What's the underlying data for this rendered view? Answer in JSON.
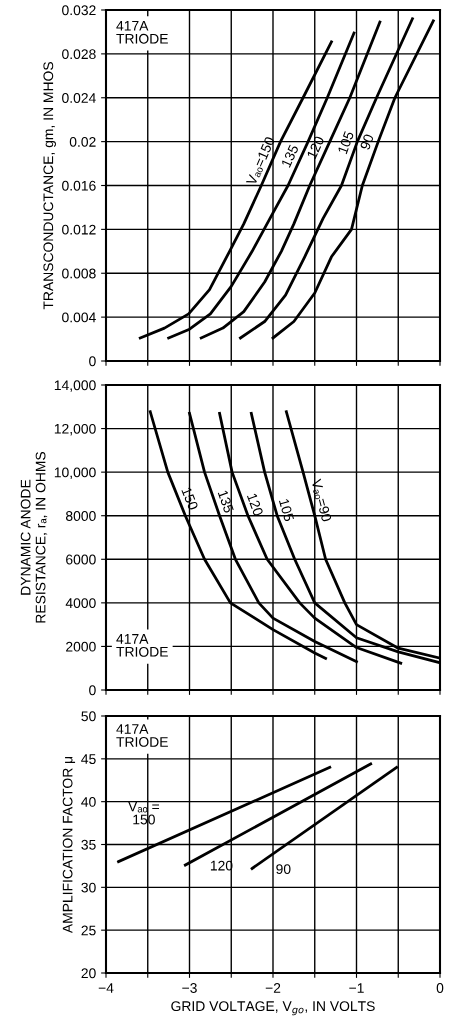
{
  "chart_data": [
    {
      "type": "line",
      "ylabel": "TRANSCONDUCTANCE, gm, IN MHOS",
      "annotations": [
        "417A\nTRIODE"
      ],
      "xlim": [
        -4,
        0
      ],
      "ylim": [
        0,
        0.032
      ],
      "xticks": [
        {
          "value": -4,
          "label": null
        },
        {
          "value": -3.5,
          "label": null
        },
        {
          "value": -3,
          "label": null
        },
        {
          "value": -2.5,
          "label": null
        },
        {
          "value": -2,
          "label": null
        },
        {
          "value": -1.5,
          "label": null
        },
        {
          "value": -1,
          "label": null
        },
        {
          "value": -0.5,
          "label": null
        },
        {
          "value": 0,
          "label": null
        }
      ],
      "yticks": [
        0,
        0.004,
        0.008,
        0.012,
        0.016,
        0.02,
        0.024,
        0.028,
        0.032
      ],
      "tick_labels": "y",
      "grid": true,
      "legend": false,
      "marker": "none",
      "line_style": "solid",
      "series": [
        {
          "name": "Vₐₒ=150",
          "color": "#000000",
          "x": [
            -3.59,
            -3.3,
            -3.01,
            -2.76,
            -2.52,
            -2.35,
            -2.14,
            -1.91,
            -1.64,
            -1.3
          ],
          "values": [
            0.0021,
            0.003,
            0.0043,
            0.0065,
            0.01,
            0.0125,
            0.016,
            0.02,
            0.024,
            0.0291
          ]
        },
        {
          "name": "135",
          "color": "#000000",
          "x": [
            -3.25,
            -3.0,
            -2.75,
            -2.5,
            -2.25,
            -2.0,
            -1.82,
            -1.58,
            -1.35,
            -1.03
          ],
          "values": [
            0.0021,
            0.0029,
            0.0043,
            0.0068,
            0.01,
            0.0135,
            0.016,
            0.02,
            0.024,
            0.0299
          ]
        },
        {
          "name": "120",
          "color": "#000000",
          "x": [
            -2.86,
            -2.6,
            -2.35,
            -2.1,
            -1.9,
            -1.75,
            -1.56,
            -1.32,
            -1.08,
            -0.72
          ],
          "values": [
            0.0021,
            0.003,
            0.0045,
            0.0072,
            0.01,
            0.0125,
            0.016,
            0.02,
            0.024,
            0.0309
          ]
        },
        {
          "name": "105",
          "color": "#000000",
          "x": [
            -2.39,
            -2.1,
            -1.85,
            -1.62,
            -1.4,
            -1.18,
            -0.99,
            -0.76,
            -0.33
          ],
          "values": [
            0.0021,
            0.0036,
            0.006,
            0.0095,
            0.013,
            0.016,
            0.02,
            0.024,
            0.0312
          ]
        },
        {
          "name": "90",
          "color": "#000000",
          "x": [
            -2.0,
            -1.75,
            -1.5,
            -1.3,
            -1.06,
            -0.93,
            -0.74,
            -0.54,
            -0.08
          ],
          "values": [
            0.0021,
            0.0036,
            0.0062,
            0.0095,
            0.012,
            0.016,
            0.02,
            0.024,
            0.031
          ]
        }
      ]
    },
    {
      "type": "line",
      "ylabel": "DYNAMIC ANODE\nRESISTANCE, rₐ, IN OHMS",
      "annotations": [
        "417A\nTRIODE"
      ],
      "xlim": [
        -4,
        0
      ],
      "ylim": [
        0,
        14000
      ],
      "xticks": [
        {
          "value": -4,
          "label": null
        },
        {
          "value": -3.5,
          "label": null
        },
        {
          "value": -3,
          "label": null
        },
        {
          "value": -2.5,
          "label": null
        },
        {
          "value": -2,
          "label": null
        },
        {
          "value": -1.5,
          "label": null
        },
        {
          "value": -1,
          "label": null
        },
        {
          "value": -0.5,
          "label": null
        },
        {
          "value": 0,
          "label": null
        }
      ],
      "yticks": [
        0,
        2000,
        4000,
        6000,
        8000,
        {
          "value": 10000,
          "label": "10,000"
        },
        {
          "value": 12000,
          "label": "12,000"
        },
        {
          "value": 14000,
          "label": "14,000"
        }
      ],
      "tick_labels": "y",
      "grid": true,
      "legend": false,
      "marker": "none",
      "line_style": "solid",
      "series": [
        {
          "name": "150",
          "color": "#000000",
          "x": [
            -3.47,
            -3.26,
            -3.05,
            -2.82,
            -2.51,
            -2.0,
            -1.5,
            -1.37
          ],
          "values": [
            12770,
            10000,
            8000,
            6000,
            4000,
            2770,
            1700,
            1450
          ]
        },
        {
          "name": "135",
          "color": "#000000",
          "x": [
            -3.0,
            -2.82,
            -2.64,
            -2.45,
            -2.17,
            -2.0,
            -1.5,
            -1.0
          ],
          "values": [
            12700,
            10000,
            8000,
            6000,
            4000,
            3300,
            2230,
            1300
          ]
        },
        {
          "name": "120",
          "color": "#000000",
          "x": [
            -2.64,
            -2.49,
            -2.3,
            -2.07,
            -1.68,
            -1.5,
            -1.0,
            -0.47
          ],
          "values": [
            12700,
            10000,
            8000,
            6000,
            4000,
            3300,
            1950,
            1230
          ]
        },
        {
          "name": "105",
          "color": "#000000",
          "x": [
            -2.26,
            -2.1,
            -1.95,
            -1.74,
            -1.5,
            -1.0,
            -0.5,
            0
          ],
          "values": [
            12700,
            10000,
            8000,
            6000,
            4000,
            2400,
            1750,
            1250
          ]
        },
        {
          "name": "Vₐₒ=90",
          "color": "#000000",
          "x": [
            -1.84,
            -1.64,
            -1.5,
            -1.37,
            -1.14,
            -1.0,
            -0.5,
            0
          ],
          "values": [
            12770,
            10000,
            8000,
            6000,
            4000,
            3000,
            1920,
            1460
          ]
        }
      ]
    },
    {
      "type": "line",
      "ylabel": "AMPLIFICATION FACTOR μ",
      "xlabel": "GRID VOLTAGE, V$_{go}$, IN VOLTS",
      "annotations": [
        "417A\nTRIODE"
      ],
      "xlim": [
        -4,
        0
      ],
      "ylim": [
        20,
        50
      ],
      "xticks": [
        {
          "value": -4,
          "label": "−4"
        },
        {
          "value": -3.5,
          "label": null
        },
        {
          "value": -3,
          "label": "−3"
        },
        {
          "value": -2.5,
          "label": null
        },
        {
          "value": -2,
          "label": "−2"
        },
        {
          "value": -1.5,
          "label": null
        },
        {
          "value": -1,
          "label": "−1"
        },
        {
          "value": -0.5,
          "label": null
        },
        0
      ],
      "yticks": [
        20,
        25,
        30,
        35,
        40,
        45,
        50
      ],
      "grid": true,
      "legend": false,
      "marker": "none",
      "line_style": "solid",
      "series": [
        {
          "name": "Vₐₒ =\n150",
          "color": "#000000",
          "x": [
            -3.85,
            -1.32
          ],
          "values": [
            33,
            44
          ]
        },
        {
          "name": "120",
          "color": "#000000",
          "x": [
            -3.05,
            -0.83
          ],
          "values": [
            32.6,
            44.4
          ]
        },
        {
          "name": "90",
          "color": "#000000",
          "x": [
            -2.25,
            -0.52
          ],
          "values": [
            32.2,
            44
          ]
        }
      ]
    }
  ]
}
